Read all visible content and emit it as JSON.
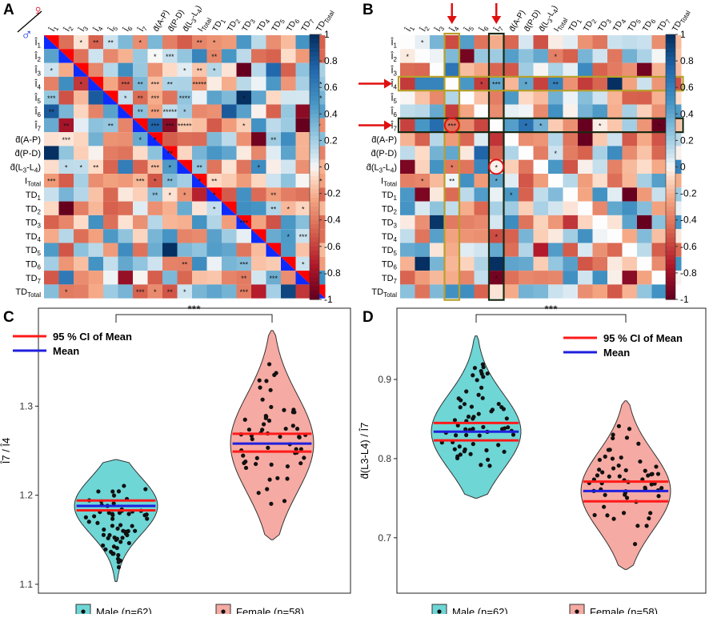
{
  "panels": {
    "A": {
      "letter": "A",
      "female_symbol": "♀",
      "male_symbol": "♂"
    },
    "B": {
      "letter": "B"
    },
    "C": {
      "letter": "C"
    },
    "D": {
      "letter": "D"
    }
  },
  "colors": {
    "male": "#6fd6d6",
    "female": "#f5aaa3",
    "ci": "#ff1a1a",
    "mean": "#1f1fdd",
    "diag": "#0d2bff",
    "diag2": "#ff0000",
    "highlight_box": "#1a2a14",
    "highlight_box2": "#b8a02a"
  },
  "chart_data": [
    {
      "type": "heatmap",
      "panel": "A",
      "title": "",
      "row_labels": [
        "Î1",
        "Î2",
        "Î3",
        "Î4",
        "Î5",
        "Î6",
        "Î7",
        "d̂(A-P)",
        "d̂(P-D)",
        "d̂(L3-L4)",
        "ITotal",
        "TD1",
        "TD2",
        "TD3",
        "TD4",
        "TD5",
        "TD6",
        "TD7",
        "TDTotal"
      ],
      "col_labels": [
        "Î1",
        "Î2",
        "Î3",
        "Î4",
        "Î5",
        "Î6",
        "Î7",
        "d̂(A-P)",
        "d̂(P-D)",
        "d̂(L3-L4)",
        "ITotal",
        "TD1",
        "TD2",
        "TD3",
        "TD4",
        "TD5",
        "TD6",
        "TD7",
        "TDTotal"
      ],
      "diagonal_note": "Upper triangle: female; lower triangle: male",
      "colorbar": {
        "min": -1,
        "max": 1,
        "ticks": [
          "1",
          "0.8",
          "0.6",
          "0.4",
          "0.2",
          "0",
          "-0.2",
          "-0.4",
          "-0.6",
          "-0.8",
          "-1"
        ]
      },
      "significance_marks": [
        [
          0,
          2,
          "*"
        ],
        [
          0,
          3,
          "**"
        ],
        [
          0,
          4,
          "**"
        ],
        [
          0,
          6,
          "*"
        ],
        [
          0,
          10,
          "**"
        ],
        [
          0,
          11,
          "*"
        ],
        [
          1,
          7,
          "*"
        ],
        [
          1,
          8,
          "***"
        ],
        [
          1,
          11,
          "**"
        ],
        [
          2,
          0,
          "*"
        ],
        [
          2,
          9,
          "*"
        ],
        [
          2,
          10,
          "**"
        ],
        [
          2,
          11,
          "*"
        ],
        [
          3,
          2,
          "*"
        ],
        [
          3,
          5,
          "***"
        ],
        [
          3,
          6,
          "**"
        ],
        [
          3,
          7,
          "***"
        ],
        [
          3,
          8,
          "**"
        ],
        [
          3,
          10,
          "*****"
        ],
        [
          3,
          18,
          "***"
        ],
        [
          4,
          0,
          "***"
        ],
        [
          4,
          5,
          "*"
        ],
        [
          4,
          6,
          "**"
        ],
        [
          4,
          7,
          "***"
        ],
        [
          4,
          9,
          "****"
        ],
        [
          4,
          13,
          "*"
        ],
        [
          4,
          18,
          "***"
        ],
        [
          5,
          0,
          "**"
        ],
        [
          5,
          6,
          "**"
        ],
        [
          5,
          7,
          "***"
        ],
        [
          5,
          8,
          "*****"
        ],
        [
          5,
          9,
          "*"
        ],
        [
          6,
          1,
          "**"
        ],
        [
          6,
          4,
          "**"
        ],
        [
          6,
          7,
          "***"
        ],
        [
          6,
          8,
          "***"
        ],
        [
          6,
          9,
          "*****"
        ],
        [
          6,
          13,
          "*"
        ],
        [
          6,
          18,
          "**"
        ],
        [
          7,
          1,
          "***"
        ],
        [
          7,
          6,
          "*"
        ],
        [
          7,
          7,
          "*"
        ],
        [
          7,
          15,
          "**"
        ],
        [
          8,
          8,
          "**"
        ],
        [
          9,
          1,
          "*"
        ],
        [
          9,
          2,
          "*"
        ],
        [
          9,
          3,
          "**"
        ],
        [
          9,
          7,
          "***"
        ],
        [
          9,
          8,
          "*"
        ],
        [
          9,
          10,
          "**"
        ],
        [
          9,
          14,
          "*"
        ],
        [
          9,
          18,
          "*"
        ],
        [
          10,
          0,
          "***"
        ],
        [
          10,
          6,
          "***"
        ],
        [
          10,
          7,
          "*"
        ],
        [
          10,
          8,
          "**"
        ],
        [
          10,
          10,
          "*"
        ],
        [
          10,
          11,
          "**"
        ],
        [
          10,
          18,
          "***"
        ],
        [
          11,
          7,
          "**"
        ],
        [
          11,
          8,
          "*"
        ],
        [
          11,
          9,
          "*"
        ],
        [
          11,
          11,
          "*"
        ],
        [
          11,
          15,
          "**"
        ],
        [
          12,
          11,
          "*"
        ],
        [
          12,
          15,
          "**"
        ],
        [
          12,
          16,
          "*"
        ],
        [
          12,
          17,
          "*"
        ],
        [
          13,
          13,
          "***"
        ],
        [
          14,
          16,
          "*"
        ],
        [
          14,
          17,
          "***"
        ],
        [
          16,
          9,
          "**"
        ],
        [
          16,
          13,
          "***"
        ],
        [
          16,
          17,
          "*"
        ],
        [
          16,
          18,
          "*"
        ],
        [
          17,
          13,
          "**"
        ],
        [
          17,
          15,
          "***"
        ],
        [
          18,
          1,
          "*"
        ],
        [
          18,
          6,
          "***"
        ],
        [
          18,
          7,
          "*"
        ],
        [
          18,
          8,
          "**"
        ],
        [
          18,
          9,
          "*"
        ],
        [
          18,
          13,
          "***"
        ]
      ]
    },
    {
      "type": "heatmap",
      "panel": "B",
      "title": "",
      "row_labels": [
        "Î1",
        "Î2",
        "Î3",
        "Î4",
        "Î5",
        "Î6",
        "Î7",
        "d̂(A-P)",
        "d̂(P-D)",
        "d̂(L3-L4)",
        "ITotal",
        "TD1",
        "TD2",
        "TD3",
        "TD4",
        "TD5",
        "TD6",
        "TD7",
        "TDTotal"
      ],
      "col_labels": [
        "Î1",
        "Î2",
        "Î3",
        "Î4",
        "Î5",
        "Î6",
        "Î7",
        "d̂(A-P)",
        "d̂(P-D)",
        "d̂(L3-L4)",
        "ITotal",
        "TD1",
        "TD2",
        "TD3",
        "TD4",
        "TD5",
        "TD6",
        "TD7",
        "TDTotal"
      ],
      "highlighted_rows": [
        "Î4",
        "Î7"
      ],
      "highlighted_cols": [
        "Î4",
        "Î7"
      ],
      "circled_cells": [
        [
          "Î7",
          "Î4"
        ],
        [
          "d̂(L3-L4)",
          "Î7"
        ]
      ],
      "colorbar": {
        "min": -1,
        "max": 1,
        "ticks": [
          "1",
          "0.8",
          "0.6",
          "0.4",
          "0.2",
          "0",
          "-0.2",
          "-0.4",
          "-0.6",
          "-0.8",
          "-1"
        ]
      },
      "significance_marks": [
        [
          0,
          1,
          "*"
        ],
        [
          1,
          0,
          "*"
        ],
        [
          1,
          10,
          "*"
        ],
        [
          3,
          5,
          "*"
        ],
        [
          3,
          6,
          "***"
        ],
        [
          3,
          8,
          "*"
        ],
        [
          3,
          10,
          "**"
        ],
        [
          6,
          3,
          "***"
        ],
        [
          6,
          8,
          "*"
        ],
        [
          6,
          9,
          "*"
        ],
        [
          6,
          13,
          "*"
        ],
        [
          6,
          17,
          "*"
        ],
        [
          8,
          10,
          "*"
        ],
        [
          9,
          3,
          "*"
        ],
        [
          9,
          6,
          "*"
        ],
        [
          10,
          1,
          "*"
        ],
        [
          10,
          3,
          "**"
        ],
        [
          10,
          6,
          "*"
        ],
        [
          11,
          7,
          "*"
        ],
        [
          14,
          6,
          "*"
        ],
        [
          17,
          6,
          "*"
        ]
      ]
    },
    {
      "type": "violin",
      "panel": "C",
      "ylabel": "Î7 / Î4",
      "ylim": [
        1.09,
        1.41
      ],
      "y_ticks": [
        1.1,
        1.2,
        1.3
      ],
      "significance": "***",
      "legend": [
        "95 % CI of Mean",
        "Mean"
      ],
      "groups": [
        {
          "name": "Male (n=62)",
          "mean": 1.188,
          "ci": [
            1.183,
            1.194
          ],
          "y_min": 1.103,
          "y_max": 1.24
        },
        {
          "name": "Female (n=58)",
          "mean": 1.258,
          "ci": [
            1.249,
            1.269
          ],
          "y_min": 1.15,
          "y_max": 1.385
        }
      ]
    },
    {
      "type": "violin",
      "panel": "D",
      "ylabel": "d̂(L3-L4) / Î7",
      "ylim": [
        0.63,
        0.99
      ],
      "y_ticks": [
        0.7,
        0.8,
        0.9
      ],
      "significance": "***",
      "legend": [
        "95 % CI of Mean",
        "Mean"
      ],
      "groups": [
        {
          "name": "Male (n=62)",
          "mean": 0.834,
          "ci": [
            0.823,
            0.845
          ],
          "y_min": 0.75,
          "y_max": 0.955
        },
        {
          "name": "Female (n=58)",
          "mean": 0.759,
          "ci": [
            0.746,
            0.771
          ],
          "y_min": 0.66,
          "y_max": 0.873
        }
      ]
    }
  ]
}
